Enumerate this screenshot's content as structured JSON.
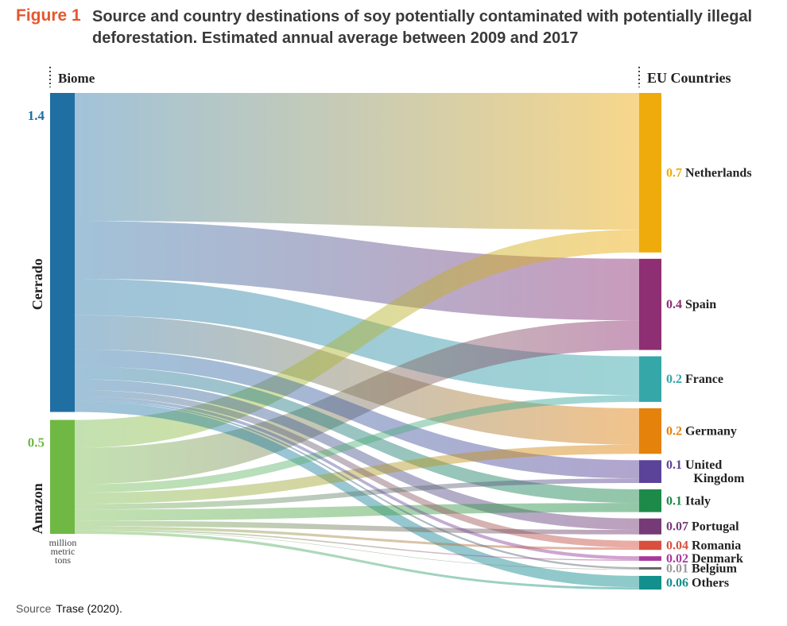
{
  "figure": {
    "label": "Figure 1",
    "title": "Source and country destinations of soy potentially contaminated with potentially illegal deforestation. Estimated annual average between 2009 and 2017"
  },
  "source": {
    "label": "Source",
    "text": "Trase (2020)."
  },
  "chart_data": {
    "type": "sankey",
    "left_header": "Biome",
    "right_header": "EU Countries",
    "unit_label": "million metric tons",
    "sources": [
      {
        "name": "Cerrado",
        "value_label": "1.4",
        "value": 1.4,
        "color": "#1f6fa3"
      },
      {
        "name": "Amazon",
        "value_label": "0.5",
        "value": 0.5,
        "color": "#6fb844"
      }
    ],
    "targets": [
      {
        "name": "Netherlands",
        "value_label": "0.7",
        "value": 0.7,
        "color": "#efab0c"
      },
      {
        "name": "Spain",
        "value_label": "0.4",
        "value": 0.4,
        "color": "#8e2e73"
      },
      {
        "name": "France",
        "value_label": "0.2",
        "value": 0.2,
        "color": "#35a7a9"
      },
      {
        "name": "Germany",
        "value_label": "0.2",
        "value": 0.2,
        "color": "#e4820c"
      },
      {
        "name": "United Kingdom",
        "label_lines": [
          "United",
          "Kingdom"
        ],
        "value_label": "0.1",
        "value": 0.1,
        "color": "#5b4399"
      },
      {
        "name": "Italy",
        "value_label": "0.1",
        "value": 0.1,
        "color": "#1d8a4a"
      },
      {
        "name": "Portugal",
        "value_label": "0.07",
        "value": 0.07,
        "color": "#763a77"
      },
      {
        "name": "Romania",
        "value_label": "0.04",
        "value": 0.04,
        "color": "#d8503d"
      },
      {
        "name": "Denmark",
        "value_label": "0.02",
        "value": 0.02,
        "color": "#a8399c"
      },
      {
        "name": "Belgium",
        "value_label": "0.01",
        "value": 0.01,
        "color": "#666666"
      },
      {
        "name": "Others",
        "value_label": "0.06",
        "value": 0.06,
        "color": "#13908d"
      }
    ],
    "flows": [
      {
        "source": "Cerrado",
        "target": "Netherlands",
        "value": 0.6
      },
      {
        "source": "Cerrado",
        "target": "Spain",
        "value": 0.27
      },
      {
        "source": "Cerrado",
        "target": "France",
        "value": 0.17
      },
      {
        "source": "Cerrado",
        "target": "Germany",
        "value": 0.16
      },
      {
        "source": "Cerrado",
        "target": "United Kingdom",
        "value": 0.08
      },
      {
        "source": "Cerrado",
        "target": "Italy",
        "value": 0.06
      },
      {
        "source": "Cerrado",
        "target": "Portugal",
        "value": 0.05
      },
      {
        "source": "Cerrado",
        "target": "Romania",
        "value": 0.03
      },
      {
        "source": "Cerrado",
        "target": "Denmark",
        "value": 0.015
      },
      {
        "source": "Cerrado",
        "target": "Belgium",
        "value": 0.008
      },
      {
        "source": "Cerrado",
        "target": "Others",
        "value": 0.05
      },
      {
        "source": "Amazon",
        "target": "Netherlands",
        "value": 0.1
      },
      {
        "source": "Amazon",
        "target": "Spain",
        "value": 0.13
      },
      {
        "source": "Amazon",
        "target": "France",
        "value": 0.03
      },
      {
        "source": "Amazon",
        "target": "Germany",
        "value": 0.04
      },
      {
        "source": "Amazon",
        "target": "United Kingdom",
        "value": 0.02
      },
      {
        "source": "Amazon",
        "target": "Italy",
        "value": 0.04
      },
      {
        "source": "Amazon",
        "target": "Portugal",
        "value": 0.02
      },
      {
        "source": "Amazon",
        "target": "Romania",
        "value": 0.01
      },
      {
        "source": "Amazon",
        "target": "Denmark",
        "value": 0.005
      },
      {
        "source": "Amazon",
        "target": "Belgium",
        "value": 0.002
      },
      {
        "source": "Amazon",
        "target": "Others",
        "value": 0.01
      }
    ]
  }
}
